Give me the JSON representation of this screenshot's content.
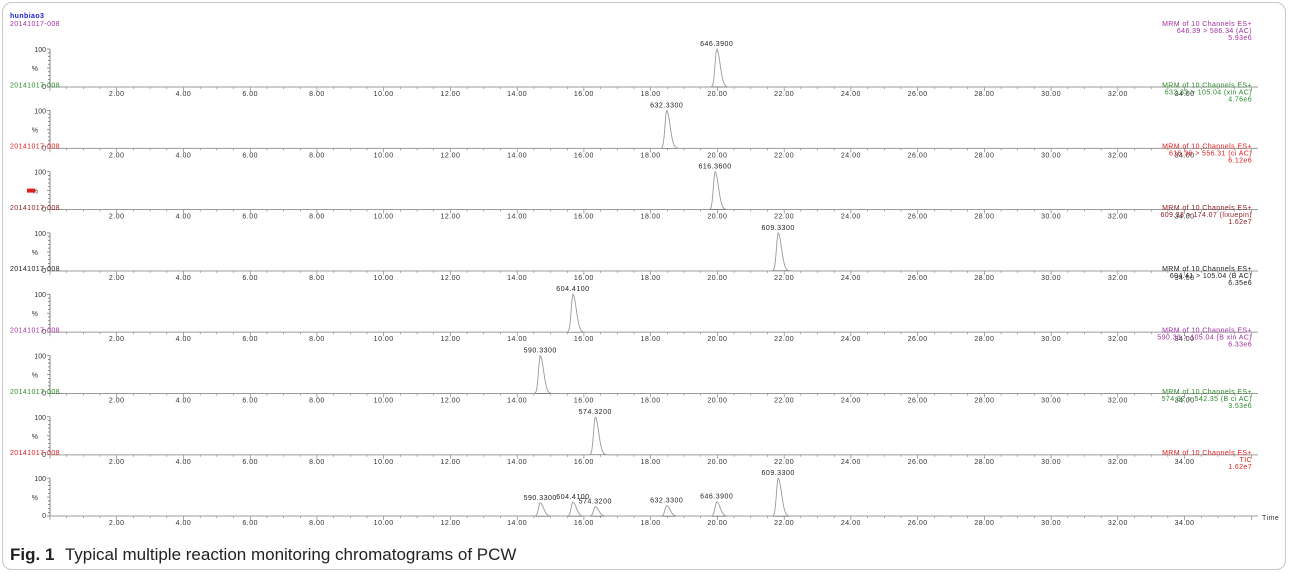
{
  "caption": {
    "label": "Fig. 1",
    "text": "Typical multiple reaction monitoring chromatograms of PCW"
  },
  "colors": {
    "blue": "#2020d0",
    "purple": "#a030a0",
    "green": "#2a8a2a",
    "red": "#e02020",
    "brown": "#8b1c1c",
    "black": "#222222",
    "trace": "#9a9a9a"
  },
  "chart_data": {
    "type": "line",
    "sample_name": "hunbiao3",
    "x_axis_label": "Time",
    "xlim": [
      0,
      36.2
    ],
    "x_ticks": [
      "2.00",
      "4.00",
      "6.00",
      "8.00",
      "10.00",
      "12.00",
      "14.00",
      "16.00",
      "18.00",
      "20.00",
      "22.00",
      "24.00",
      "26.00",
      "28.00",
      "30.00",
      "32.00",
      "34.00"
    ],
    "y_ticks": [
      "0",
      "%",
      "100"
    ],
    "panels": [
      {
        "sample": "20141017-008",
        "color": "purple",
        "header": [
          "MRM of 10 Channels ES+",
          "646.39 > 586.34 (AC)",
          "5.93e6"
        ],
        "peaks": [
          {
            "rt": 19.98,
            "height": 100,
            "label": "646.3900"
          }
        ]
      },
      {
        "sample": "20141017-008",
        "color": "green",
        "header": [
          "MRM of 10 Channels ES+",
          "632.33 > 105.04 (xin AC)",
          "4.76e6"
        ],
        "peaks": [
          {
            "rt": 18.48,
            "height": 100,
            "label": "632.3300"
          }
        ]
      },
      {
        "sample": "20141017-008",
        "color": "red",
        "header": [
          "MRM of 10 Channels ES+",
          "616.36 > 556.31 (ci AC)",
          "6.12e6"
        ],
        "peaks": [
          {
            "rt": 19.93,
            "height": 100,
            "label": "616.3600"
          }
        ]
      },
      {
        "sample": "20141017-008",
        "color": "brown",
        "header": [
          "MRM of 10 Channels ES+",
          "609.33 > 174.07 (lixuepin)",
          "1.62e7"
        ],
        "peaks": [
          {
            "rt": 21.82,
            "height": 100,
            "label": "609.3300"
          }
        ]
      },
      {
        "sample": "20141017-008",
        "color": "black",
        "header": [
          "MRM of 10 Channels ES+",
          "604.41 > 105.04 (B AC)",
          "6.35e6"
        ],
        "peaks": [
          {
            "rt": 15.67,
            "height": 100,
            "label": "604.4100"
          }
        ]
      },
      {
        "sample": "20141017-008",
        "color": "purple",
        "header": [
          "MRM of 10 Channels ES+",
          "590.33 > 105.04 (B xin AC)",
          "6.33e6"
        ],
        "peaks": [
          {
            "rt": 14.69,
            "height": 100,
            "label": "590.3300"
          }
        ]
      },
      {
        "sample": "20141017-008",
        "color": "green",
        "header": [
          "MRM of 10 Channels ES+",
          "574.32 > 542.35 (B ci AC)",
          "3.53e6"
        ],
        "peaks": [
          {
            "rt": 16.34,
            "height": 100,
            "label": "574.3200"
          }
        ]
      },
      {
        "sample": "20141017-008",
        "color": "red",
        "header": [
          "MRM of 10 Channels ES+",
          "TIC",
          "1.62e7"
        ],
        "peaks": [
          {
            "rt": 14.69,
            "height": 35,
            "label": "590.3300"
          },
          {
            "rt": 15.67,
            "height": 37,
            "label": "604.4100"
          },
          {
            "rt": 16.34,
            "height": 25,
            "label": "574.3200"
          },
          {
            "rt": 18.48,
            "height": 28,
            "label": "632.3300"
          },
          {
            "rt": 19.98,
            "height": 38,
            "label": "646.3900"
          },
          {
            "rt": 21.82,
            "height": 100,
            "label": "609.3300"
          }
        ]
      }
    ]
  }
}
